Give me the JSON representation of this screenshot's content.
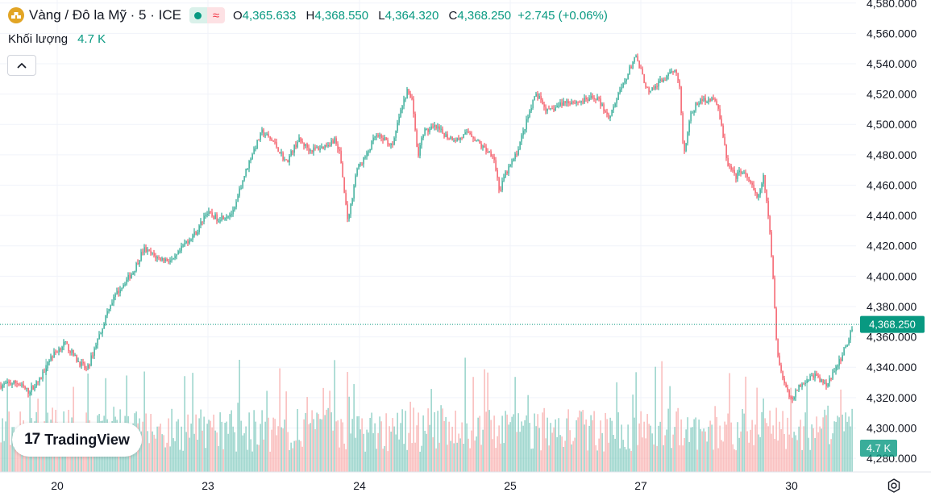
{
  "header": {
    "symbol_title": "Vàng / Đô la Mỹ · 5 · ICE",
    "symbol_icon": "gold-bars-icon",
    "ohlc": {
      "o_label": "O",
      "o_value": "4,365.633",
      "h_label": "H",
      "h_value": "4,368.550",
      "l_label": "L",
      "l_value": "4,364.320",
      "c_label": "C",
      "c_value": "4,368.250"
    },
    "change": "+2.745 (+0.06%)"
  },
  "volume_legend": {
    "label": "Khối lượng",
    "value": "4.7 K"
  },
  "branding": {
    "logo_mark": "17",
    "logo_text": "TradingView"
  },
  "colors": {
    "up": "#089981",
    "down": "#f23645",
    "vol_up": "#7cc8bc",
    "vol_down": "#f7a9a7",
    "grid": "#f0f3fa",
    "text": "#131722"
  },
  "chart_data": {
    "type": "candlestick",
    "interval": "5",
    "y_axis": {
      "ticks": [
        4280,
        4300,
        4320,
        4340,
        4360,
        4380,
        4400,
        4420,
        4440,
        4460,
        4480,
        4500,
        4520,
        4540,
        4560,
        4580
      ],
      "tick_labels": [
        "4,280.000",
        "4,300.000",
        "4,320.000",
        "4,340.000",
        "4,360.000",
        "4,380.000",
        "4,400.000",
        "4,420.000",
        "4,440.000",
        "4,460.000",
        "4,480.000",
        "4,500.000",
        "4,520.000",
        "4,540.000",
        "4,560.000",
        "4,580.000"
      ],
      "range": [
        4271,
        4582
      ]
    },
    "x_axis": {
      "labels": [
        "20",
        "23",
        "24",
        "25",
        "27",
        "30"
      ]
    },
    "last_price": 4368.25,
    "last_price_label": "4,368.250",
    "last_volume_label": "4.7 K",
    "price_path": [
      [
        0,
        4328
      ],
      [
        20,
        4330
      ],
      [
        35,
        4324
      ],
      [
        50,
        4332
      ],
      [
        60,
        4345
      ],
      [
        80,
        4356
      ],
      [
        95,
        4345
      ],
      [
        108,
        4338
      ],
      [
        118,
        4354
      ],
      [
        128,
        4368
      ],
      [
        135,
        4380
      ],
      [
        150,
        4393
      ],
      [
        165,
        4403
      ],
      [
        178,
        4418
      ],
      [
        195,
        4412
      ],
      [
        215,
        4410
      ],
      [
        230,
        4422
      ],
      [
        245,
        4430
      ],
      [
        255,
        4442
      ],
      [
        270,
        4438
      ],
      [
        290,
        4442
      ],
      [
        300,
        4462
      ],
      [
        312,
        4480
      ],
      [
        325,
        4495
      ],
      [
        340,
        4488
      ],
      [
        355,
        4475
      ],
      [
        370,
        4490
      ],
      [
        385,
        4483
      ],
      [
        400,
        4485
      ],
      [
        415,
        4490
      ],
      [
        422,
        4480
      ],
      [
        428,
        4450
      ],
      [
        432,
        4436
      ],
      [
        442,
        4470
      ],
      [
        455,
        4480
      ],
      [
        465,
        4492
      ],
      [
        478,
        4490
      ],
      [
        487,
        4485
      ],
      [
        495,
        4505
      ],
      [
        505,
        4522
      ],
      [
        512,
        4515
      ],
      [
        518,
        4478
      ],
      [
        525,
        4495
      ],
      [
        540,
        4498
      ],
      [
        555,
        4492
      ],
      [
        568,
        4490
      ],
      [
        582,
        4495
      ],
      [
        598,
        4485
      ],
      [
        612,
        4480
      ],
      [
        620,
        4455
      ],
      [
        625,
        4465
      ],
      [
        640,
        4480
      ],
      [
        655,
        4505
      ],
      [
        665,
        4520
      ],
      [
        680,
        4508
      ],
      [
        700,
        4515
      ],
      [
        720,
        4515
      ],
      [
        740,
        4518
      ],
      [
        755,
        4505
      ],
      [
        772,
        4525
      ],
      [
        788,
        4545
      ],
      [
        795,
        4535
      ],
      [
        805,
        4520
      ],
      [
        818,
        4528
      ],
      [
        830,
        4532
      ],
      [
        838,
        4538
      ],
      [
        843,
        4525
      ],
      [
        848,
        4480
      ],
      [
        856,
        4505
      ],
      [
        866,
        4515
      ],
      [
        880,
        4517
      ],
      [
        890,
        4514
      ],
      [
        896,
        4495
      ],
      [
        902,
        4475
      ],
      [
        912,
        4465
      ],
      [
        920,
        4470
      ],
      [
        932,
        4460
      ],
      [
        940,
        4450
      ],
      [
        947,
        4465
      ],
      [
        953,
        4440
      ],
      [
        957,
        4415
      ],
      [
        961,
        4380
      ],
      [
        964,
        4350
      ],
      [
        970,
        4335
      ],
      [
        980,
        4318
      ],
      [
        995,
        4330
      ],
      [
        1010,
        4335
      ],
      [
        1025,
        4328
      ],
      [
        1038,
        4340
      ],
      [
        1048,
        4352
      ],
      [
        1058,
        4368
      ]
    ]
  }
}
